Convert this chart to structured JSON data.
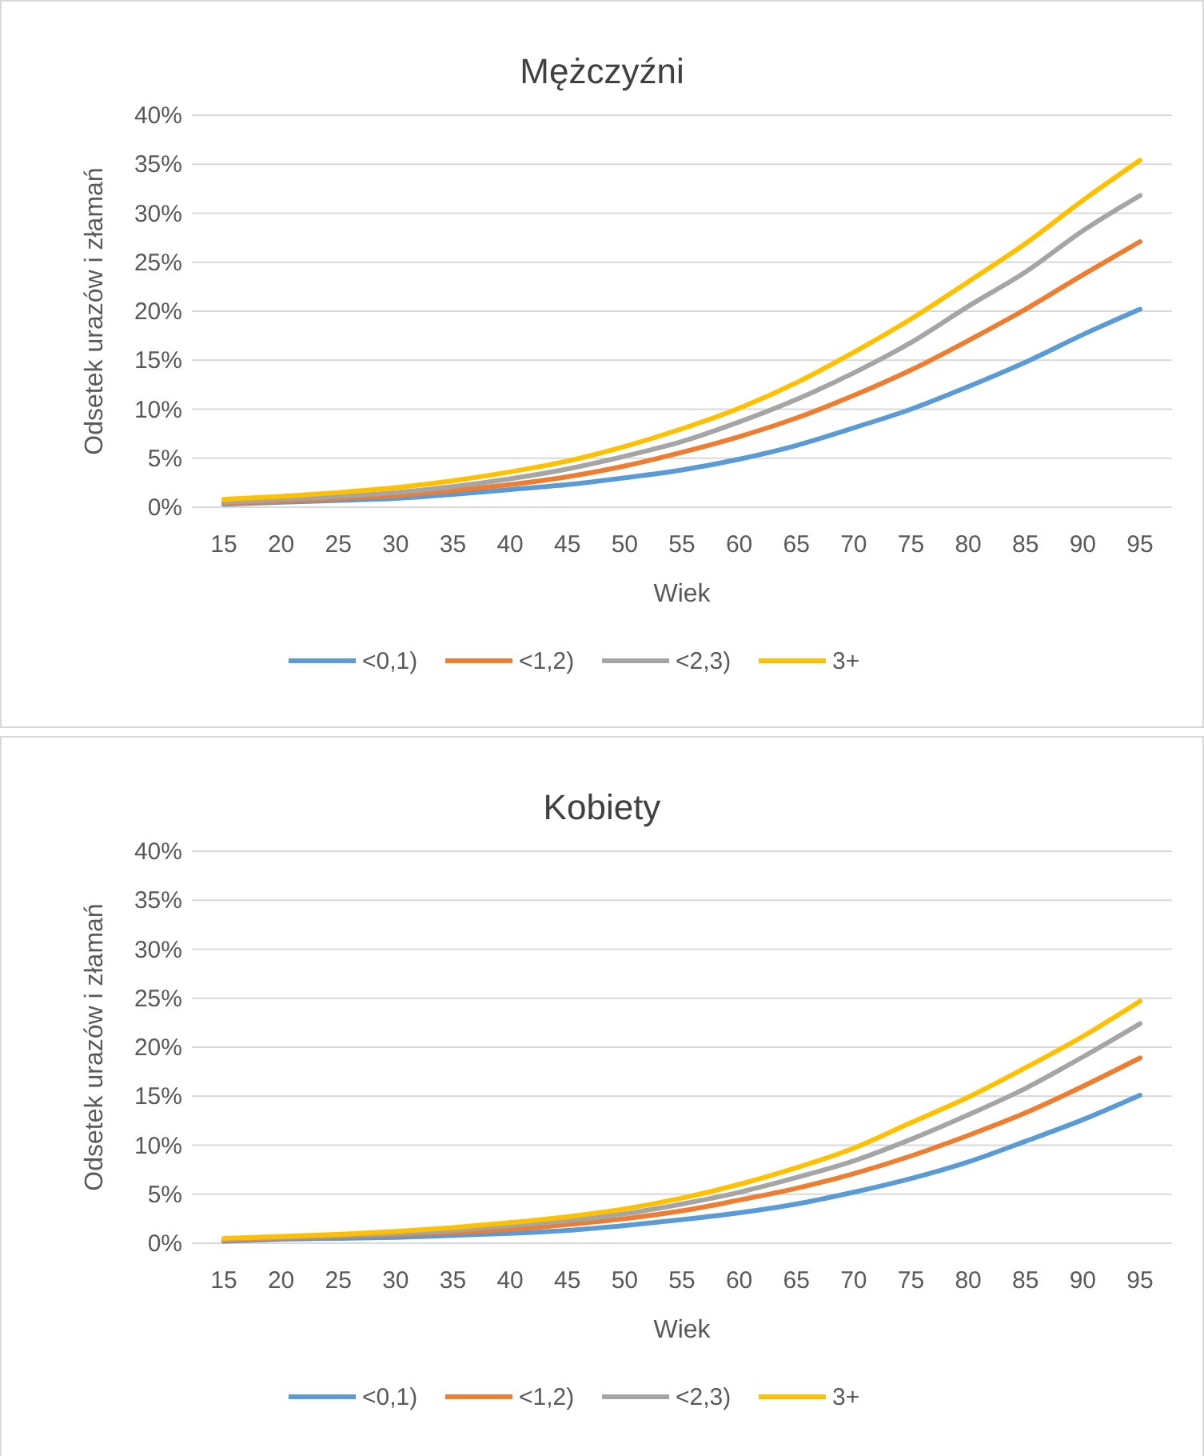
{
  "chart_data": [
    {
      "type": "line",
      "title": "Mężczyźni",
      "xlabel": "Wiek",
      "ylabel": "Odsetek urazów i złamań",
      "categories": [
        "15",
        "20",
        "25",
        "30",
        "35",
        "40",
        "45",
        "50",
        "55",
        "60",
        "65",
        "70",
        "75",
        "80",
        "85",
        "90",
        "95"
      ],
      "ylim": [
        0,
        40
      ],
      "yticks": [
        {
          "value": 0,
          "label": "0%"
        },
        {
          "value": 5,
          "label": "5%"
        },
        {
          "value": 10,
          "label": "10%"
        },
        {
          "value": 15,
          "label": "15%"
        },
        {
          "value": 20,
          "label": "20%"
        },
        {
          "value": 25,
          "label": "25%"
        },
        {
          "value": 30,
          "label": "30%"
        },
        {
          "value": 35,
          "label": "35%"
        },
        {
          "value": 40,
          "label": "40%"
        }
      ],
      "grid": "y",
      "legend": "bottom",
      "marker": "none",
      "series": [
        {
          "name": "<0,1)",
          "color": "#5b9bd5",
          "values": [
            0.3,
            0.5,
            0.7,
            0.9,
            1.3,
            1.8,
            2.3,
            3.0,
            3.8,
            4.9,
            6.3,
            8.1,
            10.0,
            12.3,
            14.8,
            17.6,
            20.2
          ]
        },
        {
          "name": "<1,2)",
          "color": "#ed7d31",
          "values": [
            0.4,
            0.6,
            0.9,
            1.2,
            1.7,
            2.3,
            3.1,
            4.2,
            5.6,
            7.2,
            9.1,
            11.4,
            14.0,
            17.0,
            20.2,
            23.7,
            27.1
          ]
        },
        {
          "name": "<2,3)",
          "color": "#a5a5a5",
          "values": [
            0.5,
            0.8,
            1.1,
            1.5,
            2.1,
            2.9,
            3.9,
            5.2,
            6.7,
            8.7,
            11.0,
            13.7,
            16.8,
            20.5,
            24.0,
            28.2,
            31.8
          ]
        },
        {
          "name": "3+",
          "color": "#ffc000",
          "values": [
            0.8,
            1.1,
            1.5,
            2.0,
            2.7,
            3.6,
            4.7,
            6.2,
            8.0,
            10.1,
            12.7,
            15.8,
            19.2,
            23.0,
            26.9,
            31.3,
            35.4
          ]
        }
      ]
    },
    {
      "type": "line",
      "title": "Kobiety",
      "xlabel": "Wiek",
      "ylabel": "Odsetek urazów i złamań",
      "categories": [
        "15",
        "20",
        "25",
        "30",
        "35",
        "40",
        "45",
        "50",
        "55",
        "60",
        "65",
        "70",
        "75",
        "80",
        "85",
        "90",
        "95"
      ],
      "ylim": [
        0,
        40
      ],
      "yticks": [
        {
          "value": 0,
          "label": "0%"
        },
        {
          "value": 5,
          "label": "5%"
        },
        {
          "value": 10,
          "label": "10%"
        },
        {
          "value": 15,
          "label": "15%"
        },
        {
          "value": 20,
          "label": "20%"
        },
        {
          "value": 25,
          "label": "25%"
        },
        {
          "value": 30,
          "label": "30%"
        },
        {
          "value": 35,
          "label": "35%"
        },
        {
          "value": 40,
          "label": "40%"
        }
      ],
      "grid": "y",
      "legend": "bottom",
      "marker": "none",
      "series": [
        {
          "name": "<0,1)",
          "color": "#5b9bd5",
          "values": [
            0.2,
            0.4,
            0.5,
            0.6,
            0.8,
            1.0,
            1.3,
            1.8,
            2.4,
            3.1,
            4.0,
            5.2,
            6.6,
            8.3,
            10.4,
            12.6,
            15.1
          ]
        },
        {
          "name": "<1,2)",
          "color": "#ed7d31",
          "values": [
            0.3,
            0.5,
            0.7,
            0.9,
            1.1,
            1.4,
            1.9,
            2.5,
            3.3,
            4.4,
            5.6,
            7.1,
            8.9,
            11.0,
            13.3,
            16.0,
            18.9
          ]
        },
        {
          "name": "<2,3)",
          "color": "#a5a5a5",
          "values": [
            0.4,
            0.6,
            0.8,
            1.0,
            1.3,
            1.8,
            2.3,
            3.0,
            4.0,
            5.2,
            6.7,
            8.4,
            10.6,
            13.1,
            15.8,
            19.0,
            22.4
          ]
        },
        {
          "name": "3+",
          "color": "#ffc000",
          "values": [
            0.5,
            0.7,
            0.9,
            1.2,
            1.6,
            2.1,
            2.7,
            3.5,
            4.6,
            6.0,
            7.7,
            9.7,
            12.3,
            14.9,
            17.9,
            21.1,
            24.7
          ]
        }
      ]
    }
  ]
}
